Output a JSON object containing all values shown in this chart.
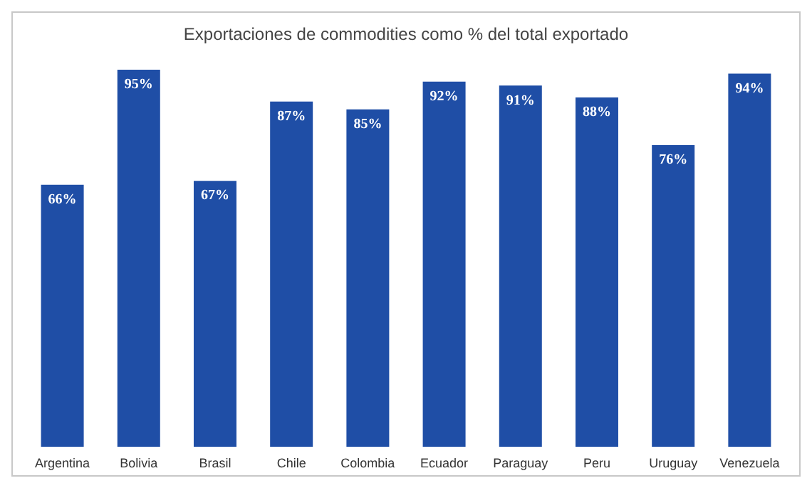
{
  "chart_data": {
    "type": "bar",
    "title": "Exportaciones de commodities como % del total exportado",
    "categories": [
      "Argentina",
      "Bolivia",
      "Brasil",
      "Chile",
      "Colombia",
      "Ecuador",
      "Paraguay",
      "Peru",
      "Uruguay",
      "Venezuela"
    ],
    "values": [
      66,
      95,
      67,
      87,
      85,
      92,
      91,
      88,
      76,
      94
    ],
    "value_labels": [
      "66%",
      "95%",
      "67%",
      "87%",
      "85%",
      "92%",
      "91%",
      "88%",
      "76%",
      "94%"
    ],
    "color": "#1f4ea6",
    "grid": false,
    "legend": false
  }
}
